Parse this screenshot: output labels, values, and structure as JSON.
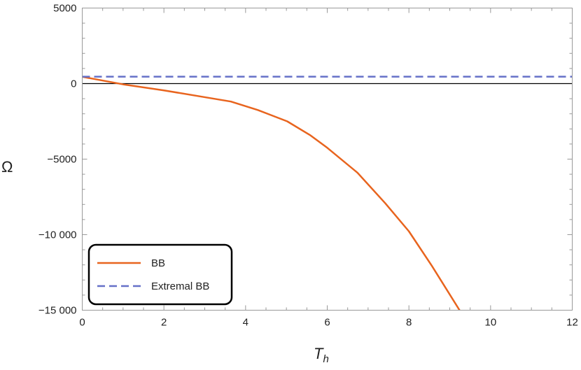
{
  "chart_data": {
    "type": "line",
    "title": "",
    "xlabel": "T",
    "xlabel_sub": "h",
    "ylabel": "Ω",
    "xlim": [
      0,
      12
    ],
    "ylim": [
      -15000,
      5000
    ],
    "xticks": [
      0,
      2,
      4,
      6,
      8,
      10,
      12
    ],
    "xtick_labels": [
      "0",
      "2",
      "4",
      "6",
      "8",
      "10",
      "12"
    ],
    "yticks": [
      5000,
      0,
      -5000,
      -10000,
      -15000
    ],
    "ytick_labels": [
      "5000",
      "0",
      "−5000",
      "−10 000",
      "−15 000"
    ],
    "grid": false,
    "legend": "bottom-left",
    "series": [
      {
        "name": "BB",
        "color": "#E8641E",
        "style": "solid",
        "x": [
          0,
          1,
          2,
          3,
          3.64,
          4.3,
          5.02,
          5.59,
          6.0,
          6.74,
          7.42,
          8.0,
          8.57,
          9.24
        ],
        "y": [
          450,
          -50,
          -450,
          -900,
          -1190,
          -1750,
          -2500,
          -3430,
          -4250,
          -5900,
          -7920,
          -9780,
          -12100,
          -15000
        ]
      },
      {
        "name": "Extremal BB",
        "color": "#6570C8",
        "style": "dashed",
        "x": [
          0,
          12
        ],
        "y": [
          455,
          455
        ]
      }
    ]
  }
}
